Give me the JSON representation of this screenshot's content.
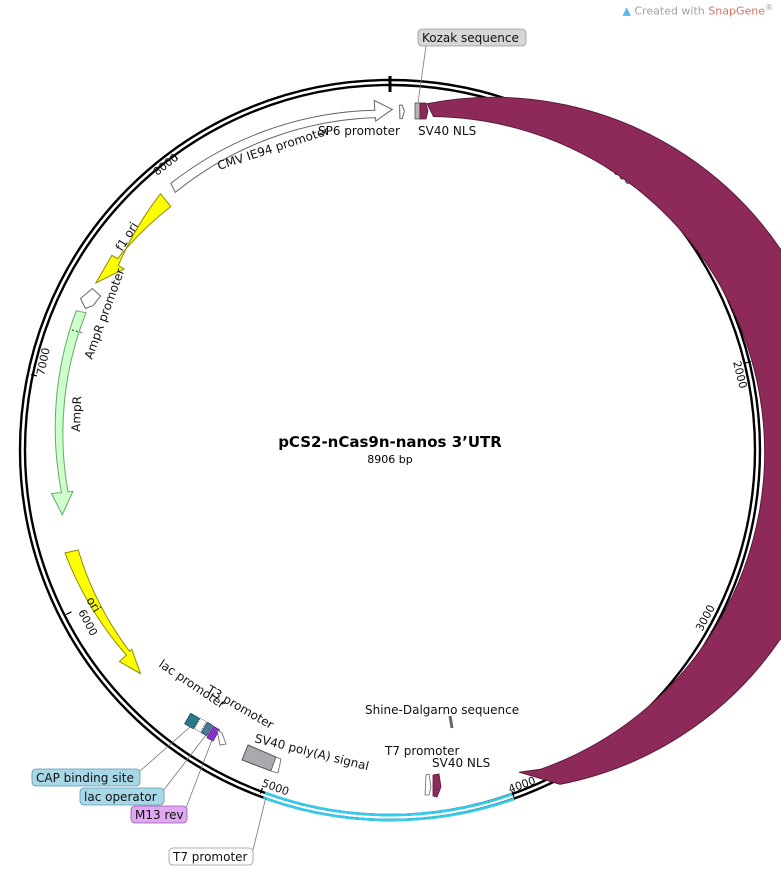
{
  "watermark": {
    "prefix": "Created with",
    "brand": "SnapGene",
    "mark": "®"
  },
  "plasmid": {
    "name": "pCS2-nCas9n-nanos 3’UTR",
    "length_label": "8906 bp",
    "length_bp": 8906
  },
  "ticks": [
    {
      "bp": 1000,
      "label": "1000"
    },
    {
      "bp": 2000,
      "label": "2000"
    },
    {
      "bp": 3000,
      "label": "3000"
    },
    {
      "bp": 4000,
      "label": "4000"
    },
    {
      "bp": 5000,
      "label": "5000"
    },
    {
      "bp": 6000,
      "label": "6000"
    },
    {
      "bp": 7000,
      "label": "7000"
    },
    {
      "bp": 8000,
      "label": "8000"
    }
  ],
  "features": [
    {
      "id": "cas9",
      "label": "Cas9",
      "color": "#8e2a5a",
      "strand": "forward"
    },
    {
      "id": "cmv",
      "label": "CMV IE94 promoter",
      "color": "#ffffff",
      "strand": "forward"
    },
    {
      "id": "sp6",
      "label": "SP6 promoter",
      "color": "#ffffff",
      "strand": "forward"
    },
    {
      "id": "sv40nls-1",
      "label": "SV40 NLS",
      "color": "#8e2a5a",
      "strand": "forward"
    },
    {
      "id": "kozak",
      "label": "Kozak sequence",
      "color": "#b4b4b4",
      "strand": "forward"
    },
    {
      "id": "f1ori",
      "label": "f1 ori",
      "color": "#ffff00",
      "strand": "reverse"
    },
    {
      "id": "amprp",
      "label": "AmpR promoter",
      "color": "#ffffff",
      "strand": "reverse"
    },
    {
      "id": "ampr",
      "label": "AmpR",
      "color": "#ccffcc",
      "strand": "reverse"
    },
    {
      "id": "ori",
      "label": "ori",
      "color": "#ffff00",
      "strand": "forward"
    },
    {
      "id": "lacp",
      "label": "lac promoter",
      "color": "#ffffff",
      "strand": "forward"
    },
    {
      "id": "cap",
      "label": "CAP binding site",
      "color": "#a8d8e8",
      "strand": "none"
    },
    {
      "id": "lacop",
      "label": "lac operator",
      "color": "#a8d8e8",
      "strand": "none"
    },
    {
      "id": "m13rev",
      "label": "M13 rev",
      "color": "#e0a8f0",
      "strand": "forward"
    },
    {
      "id": "t3",
      "label": "T3 promoter",
      "color": "#ffffff",
      "strand": "forward"
    },
    {
      "id": "sv40pa",
      "label": "SV40 poly(A) signal",
      "color": "#a8aab0",
      "strand": "forward"
    },
    {
      "id": "t7-1",
      "label": "T7 promoter",
      "color": "#ffffff",
      "strand": "forward"
    },
    {
      "id": "sv40nls-2",
      "label": "SV40 NLS",
      "color": "#8e2a5a",
      "strand": "forward"
    },
    {
      "id": "shine",
      "label": "Shine-Dalgarno sequence",
      "color": "#888888",
      "strand": "none"
    },
    {
      "id": "t7-2",
      "label": "T7 promoter",
      "color": "#ffffff",
      "strand": "forward"
    },
    {
      "id": "nanos",
      "label": "",
      "color": "#33ccee",
      "strand": "none"
    }
  ]
}
